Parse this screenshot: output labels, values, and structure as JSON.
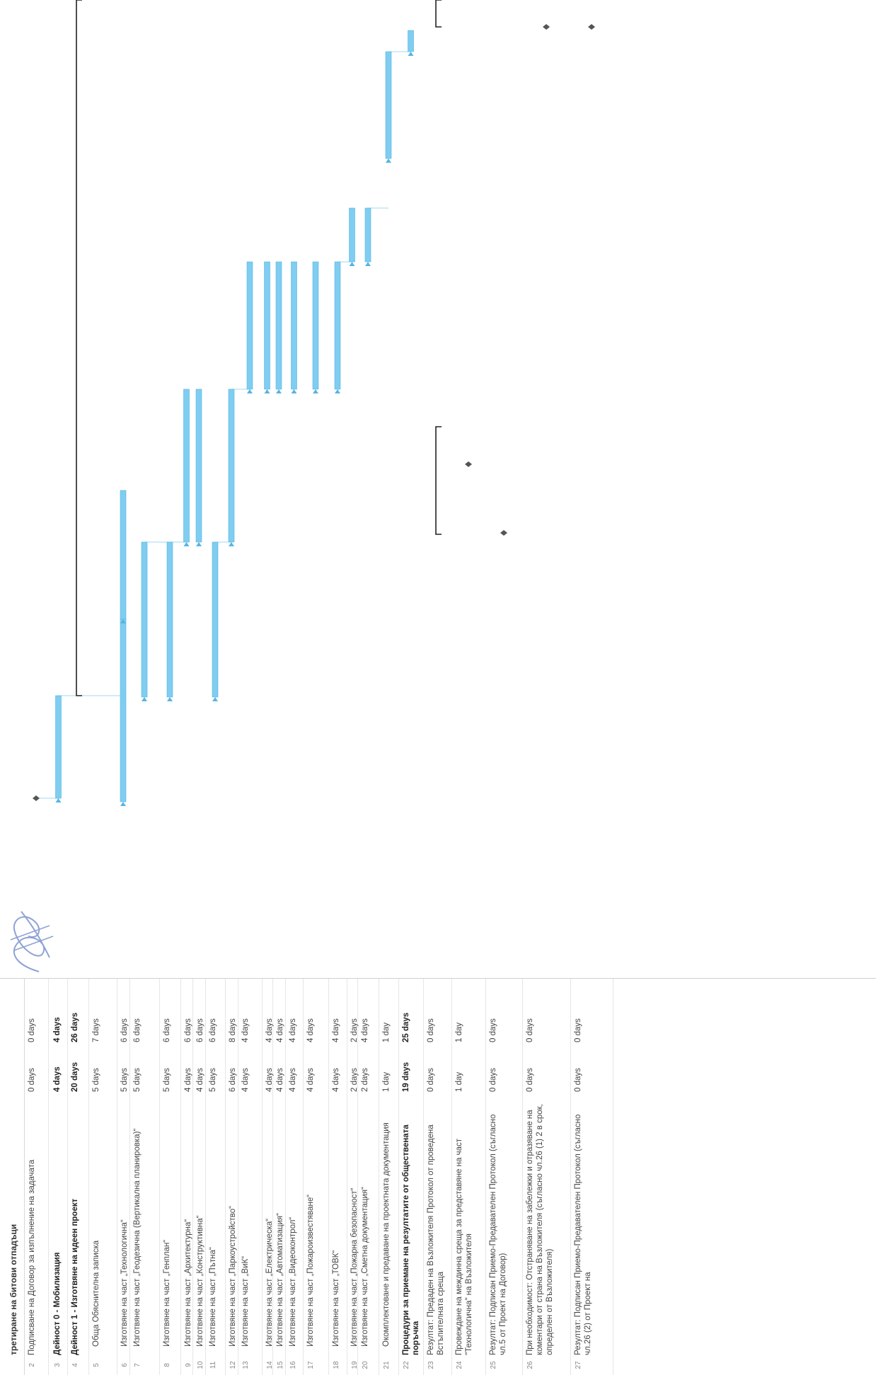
{
  "header": {
    "cut_text": "третиране на битови отпадъци"
  },
  "rows": [
    {
      "id": "2",
      "name": "Подписване на Договор за изпълнение на задачата",
      "duration": "0 days",
      "slack": "0 days",
      "summary": false
    },
    {
      "id": "3",
      "name": "Дейност 0 - Мобилизация",
      "duration": "4 days",
      "slack": "4 days",
      "summary": true
    },
    {
      "id": "4",
      "name": "Дейност 1 - Изготвяне на идеен проект",
      "duration": "20 days",
      "slack": "26 days",
      "summary": true
    },
    {
      "id": "5",
      "name": "Обща Обяснителна записка",
      "duration": "5 days",
      "slack": "7 days",
      "summary": false
    },
    {
      "id": "6",
      "name": "Изготвяне на част „Технологична“",
      "duration": "5 days",
      "slack": "6 days",
      "summary": false
    },
    {
      "id": "7",
      "name": "Изготвяне на част „Геодезична (Вертикална планировка)“",
      "duration": "5 days",
      "slack": "6 days",
      "summary": false
    },
    {
      "id": "8",
      "name": "Изготвяне на част „Генплан“",
      "duration": "5 days",
      "slack": "6 days",
      "summary": false
    },
    {
      "id": "9",
      "name": "Изготвяне на част „Архитектурна“",
      "duration": "4 days",
      "slack": "6 days",
      "summary": false
    },
    {
      "id": "10",
      "name": "Изготвяне на част „Конструктивна“",
      "duration": "4 days",
      "slack": "6 days",
      "summary": false
    },
    {
      "id": "11",
      "name": "Изготвяне на част „Пътна“",
      "duration": "5 days",
      "slack": "6 days",
      "summary": false
    },
    {
      "id": "12",
      "name": "Изготвяне на част „Паркоустройство“",
      "duration": "6 days",
      "slack": "8 days",
      "summary": false
    },
    {
      "id": "13",
      "name": "Изготвяне на част „ВиК“",
      "duration": "4 days",
      "slack": "4 days",
      "summary": false
    },
    {
      "id": "14",
      "name": "Изготвяне на част „Електрическа“",
      "duration": "4 days",
      "slack": "4 days",
      "summary": false
    },
    {
      "id": "15",
      "name": "Изготвяне на част „Автоматизация“",
      "duration": "4 days",
      "slack": "4 days",
      "summary": false
    },
    {
      "id": "16",
      "name": "Изготвяне на част „Видеоконтрол“",
      "duration": "4 days",
      "slack": "4 days",
      "summary": false
    },
    {
      "id": "17",
      "name": "Изготвяне на част „Пожароизвестяване“",
      "duration": "4 days",
      "slack": "4 days",
      "summary": false
    },
    {
      "id": "18",
      "name": "Изготвяне на част „ТОВК“",
      "duration": "4 days",
      "slack": "4 days",
      "summary": false
    },
    {
      "id": "19",
      "name": "Изготвяне на част „Пожарна безопасност“",
      "duration": "2 days",
      "slack": "2 days",
      "summary": false
    },
    {
      "id": "20",
      "name": "Изготвяне на част „Сметна документация“",
      "duration": "2 days",
      "slack": "4 days",
      "summary": false
    },
    {
      "id": "21",
      "name": "Окомплектоване и предаване на проектната документация",
      "duration": "1 day",
      "slack": "1 day",
      "summary": false
    },
    {
      "id": "22",
      "name": "Процедури за приемане на резултатите от обществената поръчка",
      "duration": "19 days",
      "slack": "25 days",
      "summary": true
    },
    {
      "id": "23",
      "name": "Резултат: Предаден на Възложителя Протокол от проведена Встъпителната среща",
      "duration": "0 days",
      "slack": "0 days",
      "summary": false
    },
    {
      "id": "24",
      "name": "Провеждане на междинна среща за представяне на част \"Технологична\" на Възложителя",
      "duration": "1 day",
      "slack": "1 day",
      "summary": false
    },
    {
      "id": "25",
      "name": "Резултат: Подписан Приемо-Предавателен Протокол (съгласно чл.5 от Проект на Договор)",
      "duration": "0 days",
      "slack": "0 days",
      "summary": false
    },
    {
      "id": "26",
      "name": "При необходимост: Отстраняване на забележки и отразяване на коментари от страна на Възложителя (съгласно чл.26 (1) 2 в срок, определен от Възложителя)",
      "duration": "0 days",
      "slack": "0 days",
      "summary": false
    },
    {
      "id": "27",
      "name": "Резултат: Подписан Приемо-Предавателен Протокол (съгласно чл.26 (2) от Проект на",
      "duration": "0 days",
      "slack": "0 days",
      "summary": false
    }
  ],
  "colors": {
    "bar": "#7fcdf0",
    "bar_edge": "#55b6e4",
    "summary": "#222222",
    "link": "#9fd8f3"
  }
}
